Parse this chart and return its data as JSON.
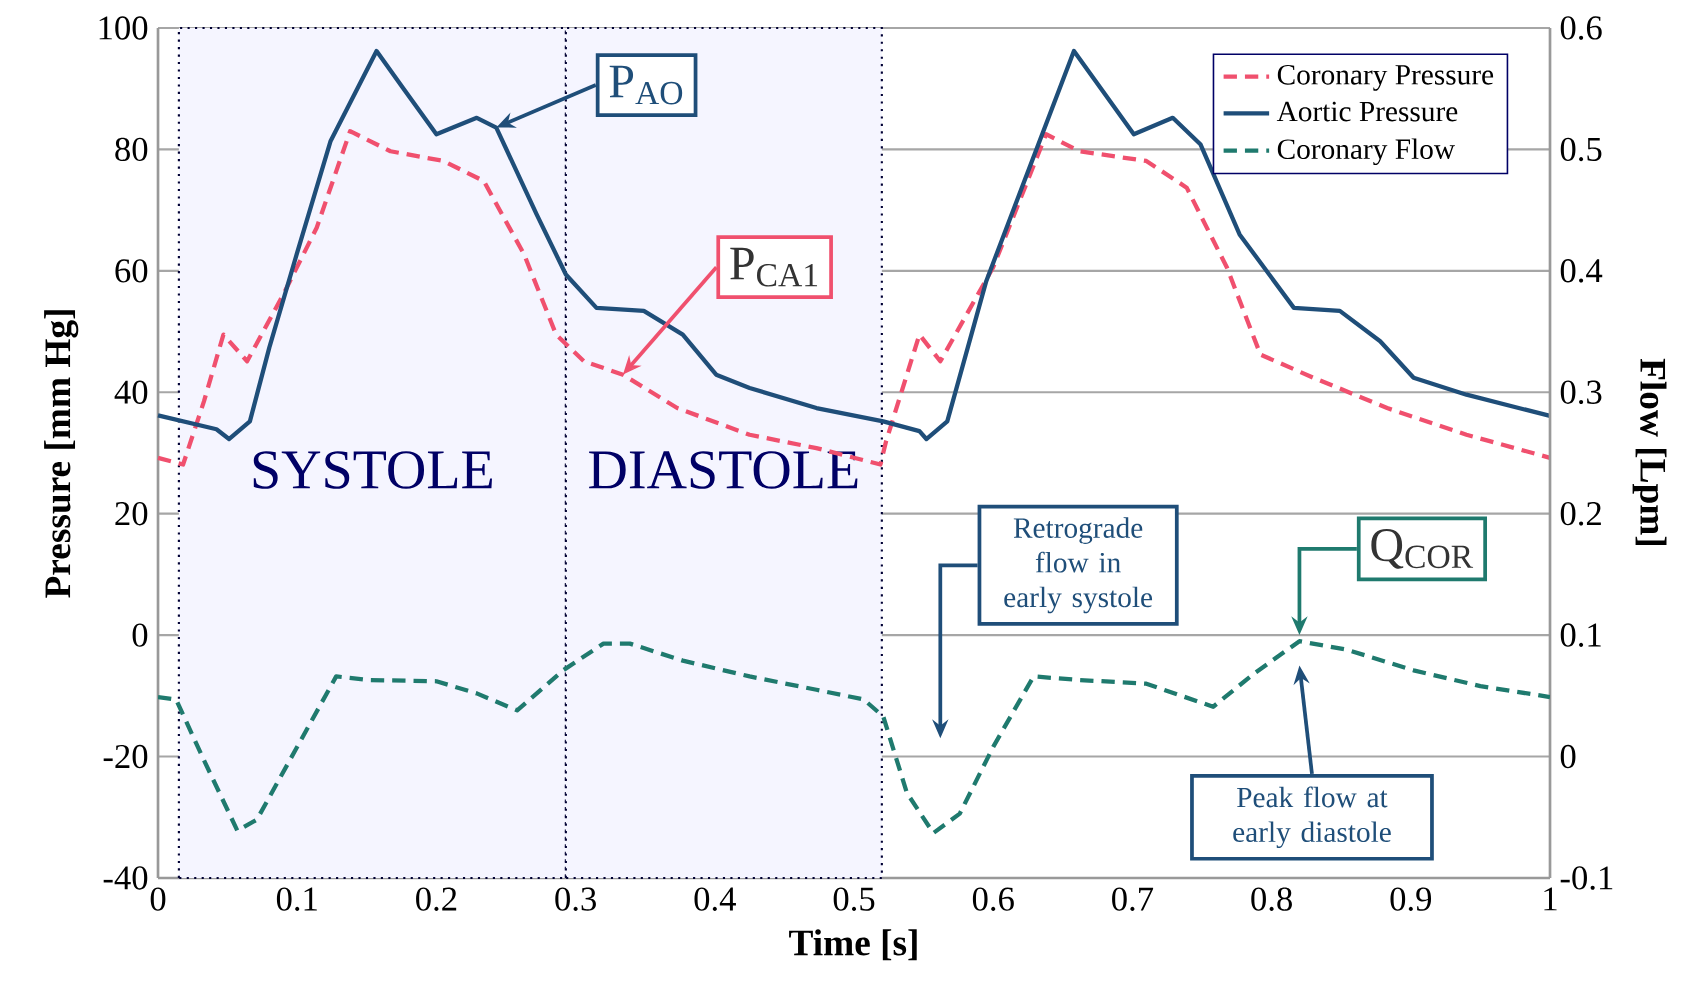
{
  "chart_data": {
    "type": "line",
    "xlabel": "Time [s]",
    "ylabel": "Pressure [mm Hg]",
    "y2label": "Flow [Lpm]",
    "xlim": [
      0,
      1
    ],
    "xticks": [
      0,
      0.1,
      0.2,
      0.3,
      0.4,
      0.5,
      0.6,
      0.7,
      0.8,
      0.9,
      1
    ],
    "ylim": [
      -40,
      100
    ],
    "yticks": [
      -40,
      -20,
      0,
      20,
      40,
      60,
      80,
      100
    ],
    "y2lim": [
      -0.1,
      0.6
    ],
    "y2ticks": [
      -0.1,
      0,
      0.1,
      0.2,
      0.3,
      0.4,
      0.5,
      0.6
    ],
    "grid": "y",
    "legend": "top right",
    "marker": "none",
    "series": [
      {
        "name": "Coronary Pressure",
        "color": "#f0506e",
        "line_style": "dashed",
        "x": [
          0,
          0.018,
          0.033,
          0.047,
          0.064,
          0.09,
          0.114,
          0.138,
          0.167,
          0.205,
          0.234,
          0.263,
          0.286,
          0.306,
          0.334,
          0.373,
          0.425,
          0.473,
          0.519,
          0.523,
          0.547,
          0.562,
          0.6,
          0.638,
          0.662,
          0.71,
          0.739,
          0.768,
          0.792,
          0.83,
          0.883,
          0.94,
          1.0
        ],
        "values": [
          29.2,
          28.1,
          38.5,
          49.5,
          45.1,
          56.1,
          67.1,
          83.0,
          79.7,
          78.1,
          74.8,
          62.7,
          49.5,
          45.1,
          42.9,
          37.4,
          33.0,
          30.8,
          28.1,
          31.9,
          49.5,
          45.1,
          60.6,
          82.5,
          79.7,
          78.1,
          73.7,
          60.5,
          46.2,
          42.4,
          37.4,
          33.0,
          29.2
        ]
      },
      {
        "name": "Aortic Pressure",
        "color": "#1f4e79",
        "line_style": "solid",
        "x": [
          0,
          0.042,
          0.051,
          0.066,
          0.08,
          0.0996,
          0.124,
          0.157,
          0.176,
          0.2,
          0.229,
          0.243,
          0.272,
          0.293,
          0.315,
          0.349,
          0.377,
          0.401,
          0.425,
          0.473,
          0.521,
          0.547,
          0.552,
          0.567,
          0.595,
          0.658,
          0.701,
          0.729,
          0.749,
          0.777,
          0.816,
          0.849,
          0.878,
          0.902,
          0.94,
          1.0
        ],
        "values": [
          36.2,
          33.9,
          32.3,
          35.2,
          47.4,
          62.7,
          81.4,
          96.2,
          90.1,
          82.5,
          85.2,
          83.6,
          69.3,
          59.4,
          53.9,
          53.4,
          49.5,
          42.9,
          40.7,
          37.4,
          35.2,
          33.6,
          32.3,
          35.2,
          58.3,
          96.2,
          82.5,
          85.2,
          80.8,
          66.0,
          53.9,
          53.4,
          48.4,
          42.4,
          39.6,
          36.1
        ]
      },
      {
        "name": "Coronary Flow",
        "color": "#1f7a6e",
        "line_style": "dashed",
        "axis": "y2",
        "x": [
          0,
          0.013,
          0.033,
          0.057,
          0.071,
          0.1,
          0.128,
          0.152,
          0.2,
          0.229,
          0.258,
          0.291,
          0.32,
          0.339,
          0.377,
          0.425,
          0.473,
          0.507,
          0.521,
          0.538,
          0.557,
          0.576,
          0.6,
          0.629,
          0.662,
          0.71,
          0.758,
          0.787,
          0.82,
          0.854,
          0.902,
          0.95,
          1.0
        ],
        "values": [
          0.049,
          0.047,
          -0.003,
          -0.061,
          -0.052,
          0.008,
          0.066,
          0.063,
          0.062,
          0.052,
          0.038,
          0.071,
          0.093,
          0.093,
          0.079,
          0.066,
          0.055,
          0.047,
          0.033,
          -0.03,
          -0.063,
          -0.047,
          0.008,
          0.066,
          0.063,
          0.06,
          0.041,
          0.068,
          0.095,
          0.088,
          0.071,
          0.058,
          0.049
        ]
      }
    ],
    "bands": [
      {
        "axis": "x",
        "from": 0.015,
        "to": 0.293,
        "label": "SYSTOLE"
      },
      {
        "axis": "x",
        "from": 0.293,
        "to": 0.52,
        "label": "DIASTOLE"
      }
    ],
    "annotations": [
      {
        "text": "P$_{AO}$",
        "x": 0.243,
        "y": 83.6
      },
      {
        "text": "P$_{CA1}$",
        "x": 0.334,
        "y": 42.9
      },
      "Retrograde flow in early systole",
      {
        "text": "Q$_{COR}$",
        "x": 0.82,
        "y": 0
      },
      "Peak flow at early diastole"
    ]
  }
}
